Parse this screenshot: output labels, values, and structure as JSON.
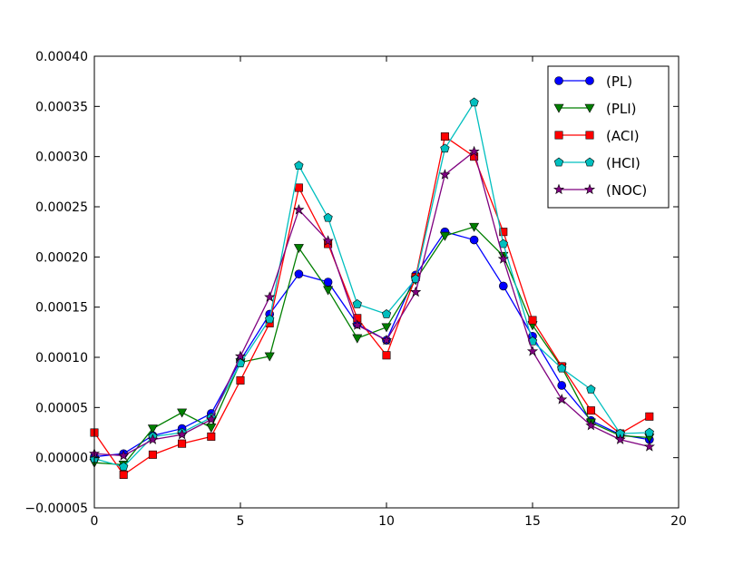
{
  "chart_data": {
    "type": "line",
    "title": "",
    "xlabel": "",
    "ylabel": "",
    "xlim": [
      0,
      20
    ],
    "ylim": [
      -5e-05,
      0.0004
    ],
    "x_ticks": [
      0,
      5,
      10,
      15,
      20
    ],
    "x_tick_labels": [
      "0",
      "5",
      "10",
      "15",
      "20"
    ],
    "y_ticks": [
      -5e-05,
      0.0,
      5e-05,
      0.0001,
      0.00015,
      0.0002,
      0.00025,
      0.0003,
      0.00035,
      0.0004
    ],
    "y_tick_labels": [
      "−0.00005",
      "0.00000",
      "0.00005",
      "0.00010",
      "0.00015",
      "0.00020",
      "0.00025",
      "0.00030",
      "0.00035",
      "0.00040"
    ],
    "grid": false,
    "legend_position": "top-right",
    "x": [
      0,
      1,
      2,
      3,
      4,
      5,
      6,
      7,
      8,
      9,
      10,
      11,
      12,
      13,
      14,
      15,
      16,
      17,
      18,
      19
    ],
    "series": [
      {
        "name": "(PL)",
        "color": "#0000ff",
        "marker": "circle",
        "values": [
          1e-06,
          4e-06,
          2.2e-05,
          2.9e-05,
          4.4e-05,
          9.7e-05,
          0.000143,
          0.000183,
          0.000175,
          0.000133,
          0.000117,
          0.000182,
          0.000225,
          0.000217,
          0.000171,
          0.000121,
          7.2e-05,
          3.7e-05,
          2.3e-05,
          1.8e-05
        ]
      },
      {
        "name": "(PLI)",
        "color": "#007f00",
        "marker": "triangle-down",
        "values": [
          -5e-06,
          -7e-06,
          2.9e-05,
          4.5e-05,
          3e-05,
          9.5e-05,
          0.000101,
          0.000209,
          0.000167,
          0.000119,
          0.00013,
          0.000177,
          0.000221,
          0.00023,
          0.000201,
          0.000132,
          9e-05,
          3.5e-05,
          2.2e-05,
          2e-05
        ]
      },
      {
        "name": "(ACI)",
        "color": "#ff0000",
        "marker": "square",
        "values": [
          2.5e-05,
          -1.7e-05,
          3e-06,
          1.4e-05,
          2.1e-05,
          7.7e-05,
          0.000134,
          0.000269,
          0.000213,
          0.000139,
          0.000102,
          0.00018,
          0.00032,
          0.0003,
          0.000225,
          0.000137,
          9.1e-05,
          4.7e-05,
          2.4e-05,
          4.1e-05
        ]
      },
      {
        "name": "(HCI)",
        "color": "#00bfbf",
        "marker": "pentagon",
        "values": [
          -1e-06,
          -9e-06,
          2.1e-05,
          2.5e-05,
          4e-05,
          9.4e-05,
          0.000138,
          0.000291,
          0.000239,
          0.000153,
          0.000143,
          0.000178,
          0.000308,
          0.000354,
          0.000213,
          0.000116,
          8.9e-05,
          6.8e-05,
          2.4e-05,
          2.5e-05
        ]
      },
      {
        "name": "(NOC)",
        "color": "#7f007f",
        "marker": "star",
        "values": [
          4e-06,
          2e-06,
          1.8e-05,
          2.3e-05,
          3.8e-05,
          0.000101,
          0.00016,
          0.000247,
          0.000216,
          0.000132,
          0.000117,
          0.000165,
          0.000282,
          0.000305,
          0.000198,
          0.000106,
          5.8e-05,
          3.2e-05,
          1.8e-05,
          1.1e-05
        ]
      }
    ]
  }
}
